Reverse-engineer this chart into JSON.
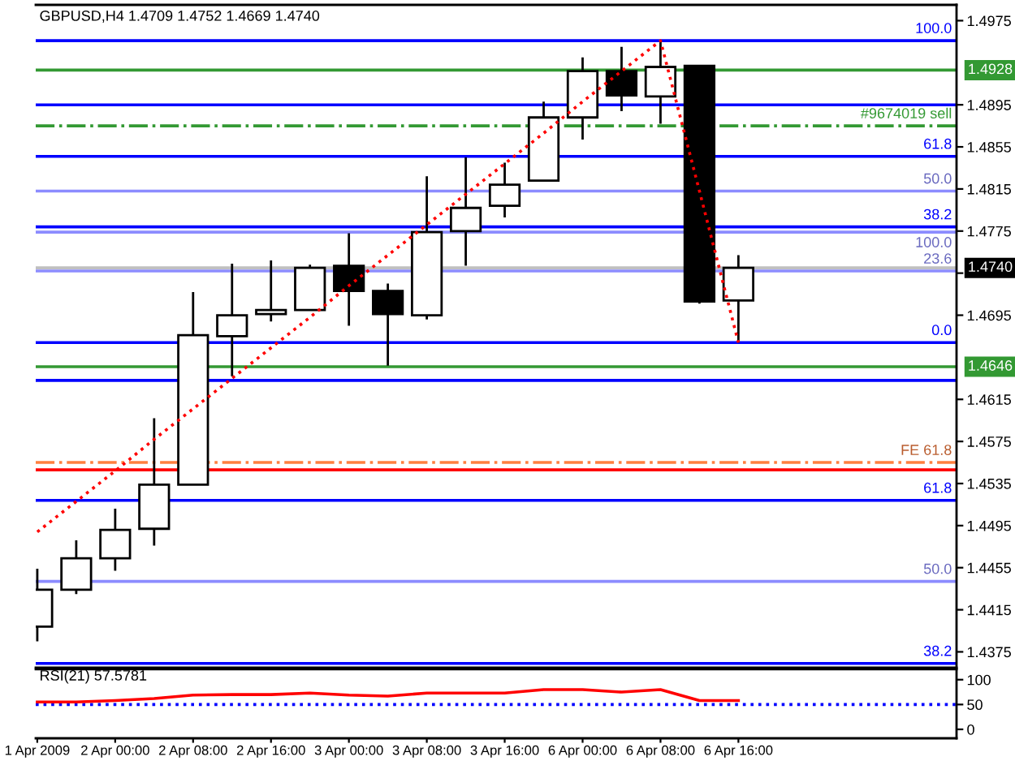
{
  "chart_data": [
    {
      "type": "candlestick",
      "title": "GBPUSD,H4 1.4709 1.4752 1.4669 1.4740",
      "categories": [
        null,
        null,
        null,
        null,
        null,
        null,
        null,
        null,
        null,
        null,
        null,
        null,
        null,
        null,
        null,
        null,
        null,
        null,
        null
      ],
      "ohlc": [
        [
          1.4399,
          1.4454,
          1.4385,
          1.4434
        ],
        [
          1.4434,
          1.4481,
          1.443,
          1.4464
        ],
        [
          1.4464,
          1.4511,
          1.4452,
          1.4491
        ],
        [
          1.4492,
          1.4597,
          1.4476,
          1.4534
        ],
        [
          1.4534,
          1.4717,
          1.4533,
          1.4676
        ],
        [
          1.4675,
          1.4744,
          1.4637,
          1.4695
        ],
        [
          1.4696,
          1.4747,
          1.4689,
          1.47
        ],
        [
          1.47,
          1.4743,
          1.4699,
          1.474
        ],
        [
          1.4742,
          1.4773,
          1.4685,
          1.4718
        ],
        [
          1.4718,
          1.4725,
          1.4647,
          1.4696
        ],
        [
          1.4695,
          1.4827,
          1.4691,
          1.4774
        ],
        [
          1.4775,
          1.4845,
          1.4742,
          1.4797
        ],
        [
          1.4799,
          1.484,
          1.4788,
          1.4819
        ],
        [
          1.4823,
          1.4898,
          1.4823,
          1.4883
        ],
        [
          1.4883,
          1.494,
          1.4862,
          1.4927
        ],
        [
          1.4927,
          1.495,
          1.4889,
          1.4904
        ],
        [
          1.4903,
          1.4956,
          1.4877,
          1.4931
        ],
        [
          1.4932,
          1.4933,
          1.4706,
          1.4708
        ],
        [
          1.4709,
          1.4752,
          1.4669,
          1.474
        ]
      ],
      "colors": [
        "#ffffff",
        "#ffffff",
        "#ffffff",
        "#ffffff",
        "#ffffff",
        "#ffffff",
        "#ffffff",
        "#ffffff",
        "#000000",
        "#000000",
        "#ffffff",
        "#ffffff",
        "#ffffff",
        "#ffffff",
        "#ffffff",
        "#000000",
        "#ffffff",
        "#000000",
        "#ffffff"
      ],
      "series": [
        {
          "type": "line",
          "values": [
            1.4489,
            1.4518,
            1.4547,
            1.4577,
            1.4606,
            1.4635,
            1.4664,
            1.4693,
            1.4723,
            1.4752,
            1.4781,
            1.481,
            1.4839,
            1.4868,
            1.4898,
            1.4927,
            1.4956,
            1.4813,
            1.4669
          ],
          "color": "#ff0000",
          "line_style": "dotted"
        }
      ],
      "ylim": [
        1.436,
        1.499
      ],
      "yticks": [
        1.4975,
        1.4895,
        1.4855,
        1.4815,
        1.4775,
        {
          "value": 1.4735,
          "label": null
        },
        1.4695,
        1.4615,
        1.4575,
        1.4535,
        1.4495,
        1.4455,
        1.4415,
        1.4375
      ],
      "ref_lines": [
        {
          "axis": "y",
          "value": 1.4928,
          "label": "1.4928",
          "color": "#339933"
        },
        {
          "axis": "y",
          "value": 1.4646,
          "label": "1.4646",
          "color": "#339933"
        },
        {
          "axis": "y",
          "value": 1.474,
          "label": "1.4740",
          "color": "#c0c0c0"
        },
        {
          "axis": "y",
          "value": 1.4875,
          "color": "#339933",
          "line_style": "dashdot"
        },
        {
          "axis": "y",
          "value": 1.4956,
          "color": "#0000ff"
        },
        {
          "axis": "y",
          "value": 1.4895,
          "color": "#0000ff"
        },
        {
          "axis": "y",
          "value": 1.4846,
          "color": "#0000ff"
        },
        {
          "axis": "y",
          "value": 1.4813,
          "color": "#8c8cff"
        },
        {
          "axis": "y",
          "value": 1.4779,
          "color": "#0000ff"
        },
        {
          "axis": "y",
          "value": 1.4774,
          "color": "#8c8cff"
        },
        {
          "axis": "y",
          "value": 1.4737,
          "color": "#8c8cff"
        },
        {
          "axis": "y",
          "value": 1.4669,
          "color": "#0000ff"
        },
        {
          "axis": "y",
          "value": 1.4633,
          "color": "#0000ff"
        },
        {
          "axis": "y",
          "value": 1.4555,
          "color": "#ff7f3f",
          "line_style": "dashdot"
        },
        {
          "axis": "y",
          "value": 1.4548,
          "color": "#ff0000"
        },
        {
          "axis": "y",
          "value": 1.4519,
          "color": "#0000ff"
        },
        {
          "axis": "y",
          "value": 1.4442,
          "color": "#8c8cff"
        },
        {
          "axis": "y",
          "value": 1.4364,
          "color": "#0000ff"
        }
      ],
      "annotations": [
        {
          "text": "#9674019 sell",
          "y": 1.4875
        },
        {
          "text": "100.0",
          "y": 1.4956
        },
        {
          "text": "61.8",
          "y": 1.4846
        },
        {
          "text": "50.0",
          "y": 1.4813
        },
        {
          "text": "38.2",
          "y": 1.4779
        },
        {
          "text": "100.0",
          "y": 1.4774
        },
        {
          "text": "23.6",
          "y": 1.4737
        },
        {
          "text": "0.0",
          "y": 1.4669
        },
        {
          "text": "FE 61.8",
          "y": 1.4555
        },
        {
          "text": "61.8",
          "y": 1.4519
        },
        {
          "text": "50.0",
          "y": 1.4442
        },
        {
          "text": "38.2",
          "y": 1.4364
        }
      ],
      "tick_labels": "y"
    },
    {
      "type": "line",
      "title": "RSI(21) 57.5781",
      "categories": [
        "1 Apr 2009",
        null,
        "2 Apr 00:00",
        null,
        "2 Apr 08:00",
        null,
        "2 Apr 16:00",
        null,
        "3 Apr 00:00",
        null,
        "3 Apr 08:00",
        null,
        "3 Apr 16:00",
        null,
        "6 Apr 00:00",
        null,
        "6 Apr 08:00",
        null,
        "6 Apr 16:00"
      ],
      "values": [
        55,
        55,
        58,
        62,
        69,
        70,
        70,
        73,
        69,
        67,
        73,
        73,
        73,
        80,
        80,
        75,
        80,
        58,
        58
      ],
      "color": "#ff0000",
      "ylim": [
        -18,
        121
      ],
      "yticks": [
        0,
        50,
        100
      ],
      "ref_lines": [
        {
          "axis": "y",
          "value": 50,
          "color": "#0000ff",
          "line_style": "dotted"
        }
      ]
    }
  ]
}
